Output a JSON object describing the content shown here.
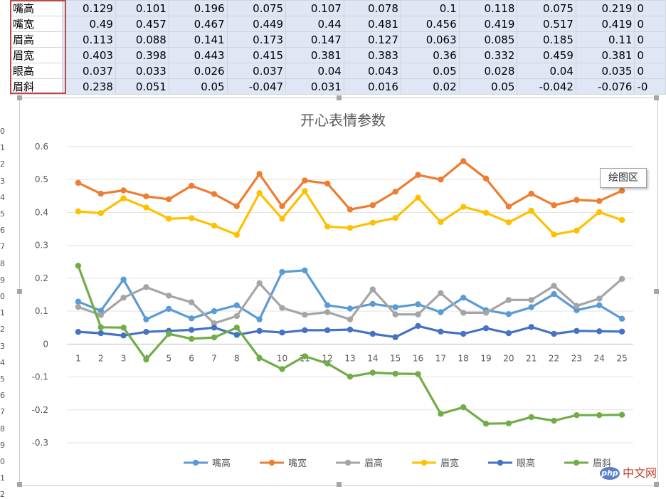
{
  "sheet": {
    "rows": [
      {
        "label": "嘴高",
        "values": [
          "0.129",
          "0.101",
          "0.196",
          "0.075",
          "0.107",
          "0.078",
          "0.1",
          "0.118",
          "0.075",
          "0.219",
          "0"
        ]
      },
      {
        "label": "嘴宽",
        "values": [
          "0.49",
          "0.457",
          "0.467",
          "0.449",
          "0.44",
          "0.481",
          "0.456",
          "0.419",
          "0.517",
          "0.419",
          "0"
        ]
      },
      {
        "label": "眉高",
        "values": [
          "0.113",
          "0.088",
          "0.141",
          "0.173",
          "0.147",
          "0.127",
          "0.063",
          "0.085",
          "0.185",
          "0.11",
          "0"
        ]
      },
      {
        "label": "眉宽",
        "values": [
          "0.403",
          "0.398",
          "0.443",
          "0.415",
          "0.381",
          "0.383",
          "0.36",
          "0.332",
          "0.459",
          "0.381",
          "0"
        ]
      },
      {
        "label": "眼高",
        "values": [
          "0.037",
          "0.033",
          "0.026",
          "0.037",
          "0.04",
          "0.043",
          "0.05",
          "0.028",
          "0.04",
          "0.035",
          "0"
        ]
      },
      {
        "label": "眉斜",
        "values": [
          "0.238",
          "0.051",
          "0.05",
          "-0.047",
          "0.031",
          "0.016",
          "0.02",
          "0.05",
          "-0.042",
          "-0.076",
          "-0"
        ]
      }
    ],
    "row_numbers": [
      "0",
      "1",
      "2",
      "3",
      "4",
      "5",
      "6",
      "7",
      "8",
      "9",
      "0",
      "1",
      "2",
      "3",
      "4",
      "5",
      "6",
      "7",
      "8",
      "9",
      "0",
      "1",
      "2"
    ]
  },
  "tooltip": "绘图区",
  "watermark": {
    "logo": "php",
    "text": "中文网"
  },
  "colors": {
    "嘴高": "#5b9bd5",
    "嘴宽": "#ed7d31",
    "眉高": "#a5a5a5",
    "眉宽": "#ffc000",
    "眼高": "#4472c4",
    "眉斜": "#70ad47"
  },
  "chart_data": {
    "type": "line",
    "title": "开心表情参数",
    "categories": [
      "1",
      "2",
      "3",
      "4",
      "5",
      "6",
      "7",
      "8",
      "9",
      "10",
      "11",
      "12",
      "13",
      "14",
      "15",
      "16",
      "17",
      "18",
      "19",
      "20",
      "21",
      "22",
      "23",
      "24",
      "25"
    ],
    "ylim": [
      -0.3,
      0.6
    ],
    "yticks": [
      "0.6",
      "0.5",
      "0.4",
      "0.3",
      "0.2",
      "0.1",
      "0",
      "-0.1",
      "-0.2",
      "-0.3"
    ],
    "grid": true,
    "legend": "bottom",
    "series": [
      {
        "name": "嘴高",
        "values": [
          0.129,
          0.101,
          0.196,
          0.075,
          0.107,
          0.078,
          0.1,
          0.118,
          0.075,
          0.219,
          0.224,
          0.118,
          0.108,
          0.122,
          0.112,
          0.121,
          0.097,
          0.141,
          0.103,
          0.091,
          0.112,
          0.152,
          0.103,
          0.118,
          0.077
        ]
      },
      {
        "name": "嘴宽",
        "values": [
          0.49,
          0.457,
          0.467,
          0.449,
          0.44,
          0.481,
          0.456,
          0.419,
          0.517,
          0.419,
          0.497,
          0.488,
          0.409,
          0.422,
          0.463,
          0.514,
          0.5,
          0.556,
          0.503,
          0.418,
          0.457,
          0.422,
          0.438,
          0.435,
          0.466
        ]
      },
      {
        "name": "眉高",
        "values": [
          0.113,
          0.088,
          0.141,
          0.173,
          0.147,
          0.127,
          0.063,
          0.085,
          0.185,
          0.11,
          0.089,
          0.097,
          0.075,
          0.166,
          0.09,
          0.09,
          0.155,
          0.095,
          0.095,
          0.134,
          0.134,
          0.177,
          0.116,
          0.138,
          0.198
        ]
      },
      {
        "name": "眉宽",
        "values": [
          0.403,
          0.398,
          0.443,
          0.415,
          0.381,
          0.383,
          0.36,
          0.332,
          0.459,
          0.381,
          0.465,
          0.357,
          0.353,
          0.369,
          0.383,
          0.445,
          0.371,
          0.417,
          0.399,
          0.37,
          0.405,
          0.333,
          0.345,
          0.401,
          0.377
        ]
      },
      {
        "name": "眼高",
        "values": [
          0.037,
          0.033,
          0.026,
          0.037,
          0.04,
          0.043,
          0.05,
          0.028,
          0.04,
          0.035,
          0.042,
          0.042,
          0.044,
          0.031,
          0.021,
          0.055,
          0.038,
          0.031,
          0.048,
          0.033,
          0.052,
          0.031,
          0.04,
          0.039,
          0.038
        ]
      },
      {
        "name": "眉斜",
        "values": [
          0.238,
          0.051,
          0.05,
          -0.047,
          0.031,
          0.016,
          0.02,
          0.05,
          -0.042,
          -0.076,
          -0.037,
          -0.059,
          -0.099,
          -0.087,
          -0.09,
          -0.091,
          -0.212,
          -0.192,
          -0.242,
          -0.241,
          -0.222,
          -0.233,
          -0.216,
          -0.216,
          -0.215
        ]
      }
    ]
  }
}
